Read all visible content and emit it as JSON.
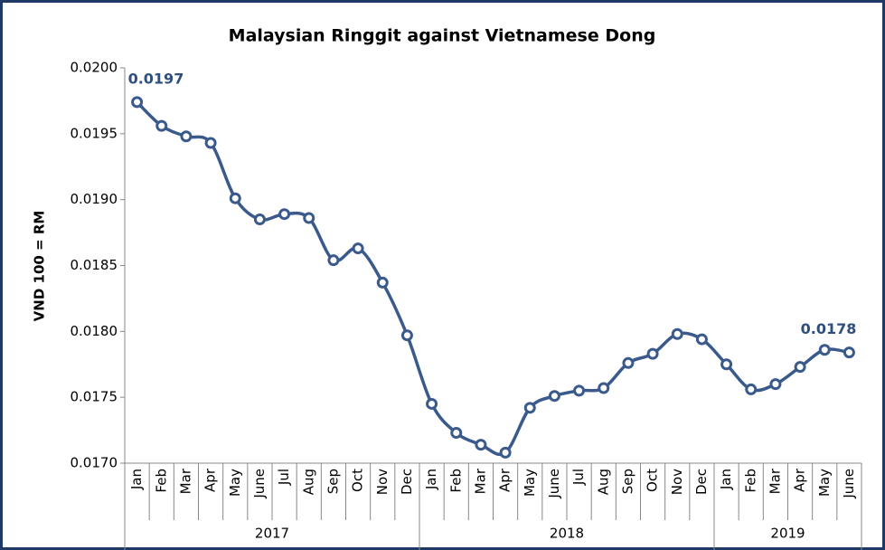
{
  "chart_data": {
    "type": "line",
    "title": "Malaysian Ringgit against Vietnamese Dong",
    "y_label": "VND 100 = RM",
    "categories": [
      "Jan",
      "Feb",
      "Mar",
      "Apr",
      "May",
      "June",
      "Jul",
      "Aug",
      "Sep",
      "Oct",
      "Nov",
      "Dec",
      "Jan",
      "Feb",
      "Mar",
      "Apr",
      "May",
      "June",
      "Jul",
      "Aug",
      "Sep",
      "Oct",
      "Nov",
      "Dec",
      "Jan",
      "Feb",
      "Mar",
      "Apr",
      "May",
      "June"
    ],
    "category_groups": [
      "2017",
      "2017",
      "2017",
      "2017",
      "2017",
      "2017",
      "2017",
      "2017",
      "2017",
      "2017",
      "2017",
      "2017",
      "2018",
      "2018",
      "2018",
      "2018",
      "2018",
      "2018",
      "2018",
      "2018",
      "2018",
      "2018",
      "2018",
      "2018",
      "2019",
      "2019",
      "2019",
      "2019",
      "2019",
      "2019"
    ],
    "series": [
      {
        "name": "RM",
        "color": "#3a5a8c",
        "values": [
          0.01974,
          0.01956,
          0.01948,
          0.01943,
          0.01901,
          0.01885,
          0.01889,
          0.01886,
          0.01854,
          0.01863,
          0.01837,
          0.01797,
          0.01745,
          0.01723,
          0.01714,
          0.01708,
          0.01742,
          0.01751,
          0.01755,
          0.01757,
          0.01776,
          0.01783,
          0.01798,
          0.01794,
          0.01775,
          0.01756,
          0.0176,
          0.01773,
          0.01786,
          0.01784
        ],
        "value_labels": [
          "0.0197",
          null,
          null,
          null,
          null,
          null,
          null,
          null,
          null,
          null,
          null,
          null,
          null,
          null,
          null,
          null,
          null,
          null,
          null,
          null,
          null,
          null,
          null,
          null,
          null,
          null,
          null,
          null,
          null,
          "0.0178"
        ]
      }
    ],
    "ylim": [
      0.017,
      0.02
    ],
    "yticks": [
      {
        "value": 0.017,
        "label": "0.0170"
      },
      {
        "value": 0.0175,
        "label": "0.0175"
      },
      {
        "value": 0.018,
        "label": "0.0180"
      },
      {
        "value": 0.0185,
        "label": "0.0185"
      },
      {
        "value": 0.019,
        "label": "0.0190"
      },
      {
        "value": 0.0195,
        "label": "0.0195"
      },
      {
        "value": 0.02,
        "label": "0.0200"
      }
    ],
    "grid": false
  }
}
